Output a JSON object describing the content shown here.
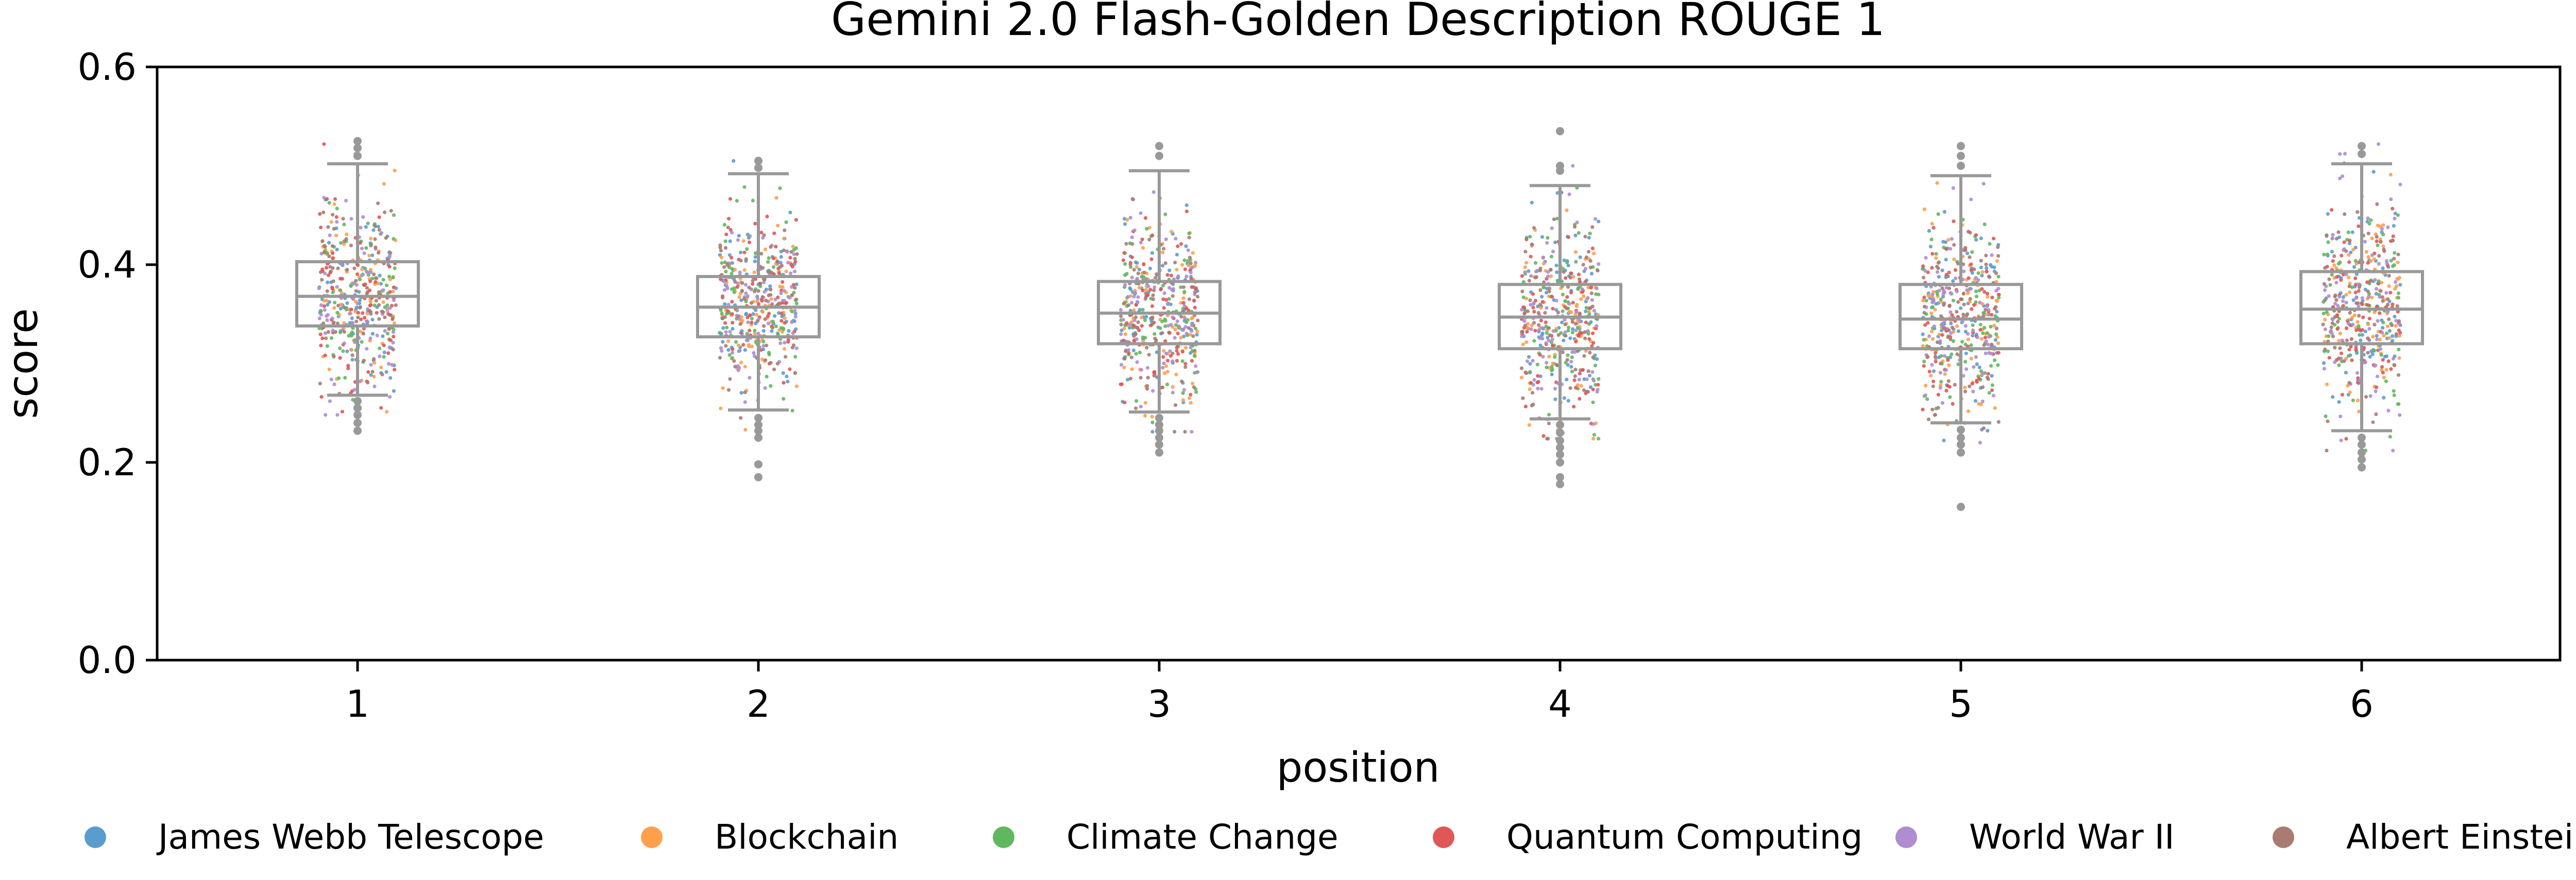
{
  "chart_data": {
    "type": "box-strip",
    "title": "Gemini 2.0 Flash-Golden Description ROUGE 1",
    "xlabel": "position",
    "ylabel": "score",
    "ylim": [
      0.0,
      0.6
    ],
    "yticks": [
      "0.0",
      "0.2",
      "0.4",
      "0.6"
    ],
    "categories": [
      "1",
      "2",
      "3",
      "4",
      "5",
      "6"
    ],
    "boxes": [
      {
        "position": "1",
        "whisker_low": 0.268,
        "q1": 0.338,
        "median": 0.368,
        "q3": 0.403,
        "whisker_high": 0.502,
        "outliers": [
          0.525,
          0.518,
          0.51,
          0.262,
          0.255,
          0.248,
          0.24,
          0.232
        ]
      },
      {
        "position": "2",
        "whisker_low": 0.253,
        "q1": 0.327,
        "median": 0.357,
        "q3": 0.388,
        "whisker_high": 0.492,
        "outliers": [
          0.505,
          0.498,
          0.245,
          0.238,
          0.232,
          0.225,
          0.198,
          0.185
        ]
      },
      {
        "position": "3",
        "whisker_low": 0.251,
        "q1": 0.32,
        "median": 0.351,
        "q3": 0.383,
        "whisker_high": 0.495,
        "outliers": [
          0.52,
          0.51,
          0.245,
          0.238,
          0.232,
          0.225,
          0.218,
          0.21
        ]
      },
      {
        "position": "4",
        "whisker_low": 0.244,
        "q1": 0.315,
        "median": 0.347,
        "q3": 0.38,
        "whisker_high": 0.48,
        "outliers": [
          0.535,
          0.5,
          0.495,
          0.238,
          0.23,
          0.222,
          0.215,
          0.208,
          0.2,
          0.185,
          0.178
        ]
      },
      {
        "position": "5",
        "whisker_low": 0.24,
        "q1": 0.315,
        "median": 0.345,
        "q3": 0.38,
        "whisker_high": 0.49,
        "outliers": [
          0.52,
          0.51,
          0.5,
          0.233,
          0.225,
          0.218,
          0.21,
          0.155
        ]
      },
      {
        "position": "6",
        "whisker_low": 0.232,
        "q1": 0.32,
        "median": 0.355,
        "q3": 0.393,
        "whisker_high": 0.502,
        "outliers": [
          0.52,
          0.512,
          0.225,
          0.218,
          0.21,
          0.203,
          0.195
        ]
      }
    ],
    "series": [
      {
        "name": "James Webb Telescope",
        "color": "#5b9ccf"
      },
      {
        "name": "Blockchain",
        "color": "#ffa04d"
      },
      {
        "name": "Climate Change",
        "color": "#5fb85f"
      },
      {
        "name": "Quantum Computing",
        "color": "#e05757"
      },
      {
        "name": "World War II",
        "color": "#ae8dd0"
      },
      {
        "name": "Albert Einstein",
        "color": "#a97b72"
      }
    ],
    "box_color": "#999999",
    "points_per_series_per_position": 80,
    "grid": false,
    "legend_position": "bottom"
  }
}
